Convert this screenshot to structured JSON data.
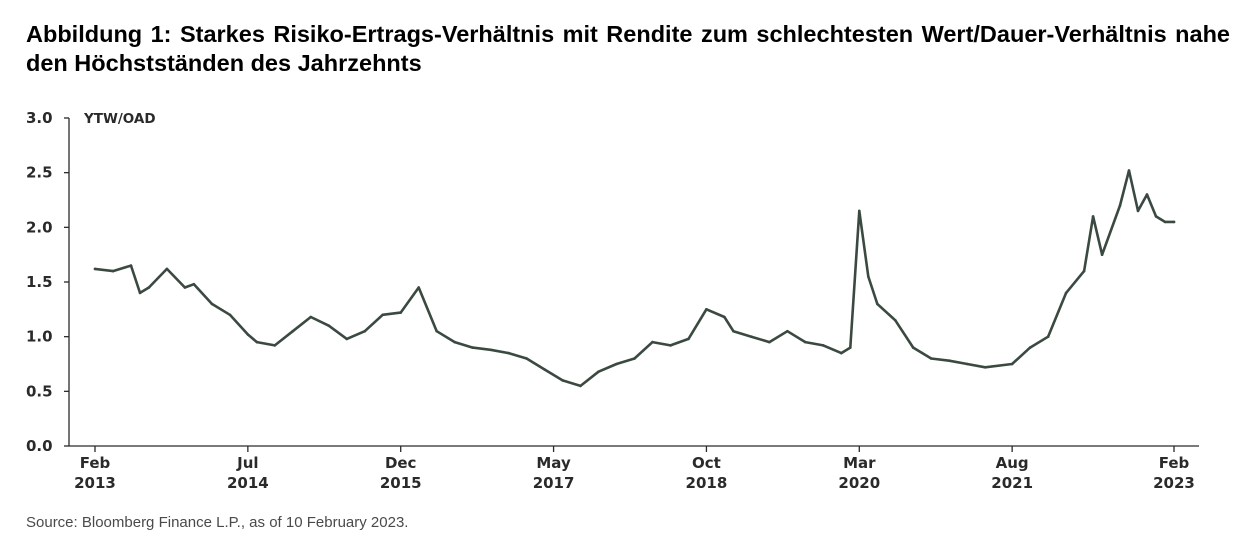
{
  "title": "Abbildung 1: Starkes Risiko-Ertrags-Verhältnis mit Rendite zum schlechtesten Wert/Dauer-Verhältnis nahe den Höchstständen des Jahrzehnts",
  "source": "Source: Bloomberg Finance L.P., as of 10 February 2023.",
  "chart_data": {
    "type": "line",
    "unit_label": "YTW/OAD",
    "title": "",
    "xlabel": "",
    "ylabel": "",
    "ylim": [
      0,
      3
    ],
    "yticks": [
      "0.0",
      "0.5",
      "1.0",
      "1.5",
      "2.0",
      "2.5",
      "3.0"
    ],
    "xticks": [
      {
        "month": "Feb",
        "year": "2013"
      },
      {
        "month": "Jul",
        "year": "2014"
      },
      {
        "month": "Dec",
        "year": "2015"
      },
      {
        "month": "May",
        "year": "2017"
      },
      {
        "month": "Oct",
        "year": "2018"
      },
      {
        "month": "Mar",
        "year": "2020"
      },
      {
        "month": "Aug",
        "year": "2021"
      },
      {
        "month": "Feb",
        "year": "2023"
      }
    ],
    "grid": false,
    "line_color": "#3b4a40",
    "series": [
      {
        "x": [
          "2013-02",
          "2013-04",
          "2013-06",
          "2013-07",
          "2013-08",
          "2013-10",
          "2013-12",
          "2014-01",
          "2014-03",
          "2014-05",
          "2014-07",
          "2014-08",
          "2014-10",
          "2014-12",
          "2015-02",
          "2015-04",
          "2015-06",
          "2015-08",
          "2015-10",
          "2015-12",
          "2016-02",
          "2016-04",
          "2016-06",
          "2016-08",
          "2016-10",
          "2016-12",
          "2017-02",
          "2017-04",
          "2017-06",
          "2017-08",
          "2017-10",
          "2017-12",
          "2018-02",
          "2018-04",
          "2018-06",
          "2018-08",
          "2018-10",
          "2018-12",
          "2019-01",
          "2019-03",
          "2019-05",
          "2019-07",
          "2019-09",
          "2019-11",
          "2020-01",
          "2020-02",
          "2020-03",
          "2020-04",
          "2020-05",
          "2020-07",
          "2020-09",
          "2020-11",
          "2021-01",
          "2021-03",
          "2021-05",
          "2021-08",
          "2021-10",
          "2021-12",
          "2022-02",
          "2022-04",
          "2022-05",
          "2022-06",
          "2022-08",
          "2022-09",
          "2022-10",
          "2022-11",
          "2022-12",
          "2023-01",
          "2023-02"
        ],
        "y": [
          1.62,
          1.6,
          1.65,
          1.4,
          1.45,
          1.62,
          1.45,
          1.48,
          1.3,
          1.2,
          1.02,
          0.95,
          0.92,
          1.05,
          1.18,
          1.1,
          0.98,
          1.05,
          1.2,
          1.22,
          1.45,
          1.05,
          0.95,
          0.9,
          0.88,
          0.85,
          0.8,
          0.7,
          0.6,
          0.55,
          0.68,
          0.75,
          0.8,
          0.95,
          0.92,
          0.98,
          1.25,
          1.18,
          1.05,
          1.0,
          0.95,
          1.05,
          0.95,
          0.92,
          0.85,
          0.9,
          2.15,
          1.55,
          1.3,
          1.15,
          0.9,
          0.8,
          0.78,
          0.75,
          0.72,
          0.75,
          0.9,
          1.0,
          1.4,
          1.6,
          2.1,
          1.75,
          2.2,
          2.52,
          2.15,
          2.3,
          2.1,
          2.05,
          2.05
        ]
      }
    ]
  }
}
